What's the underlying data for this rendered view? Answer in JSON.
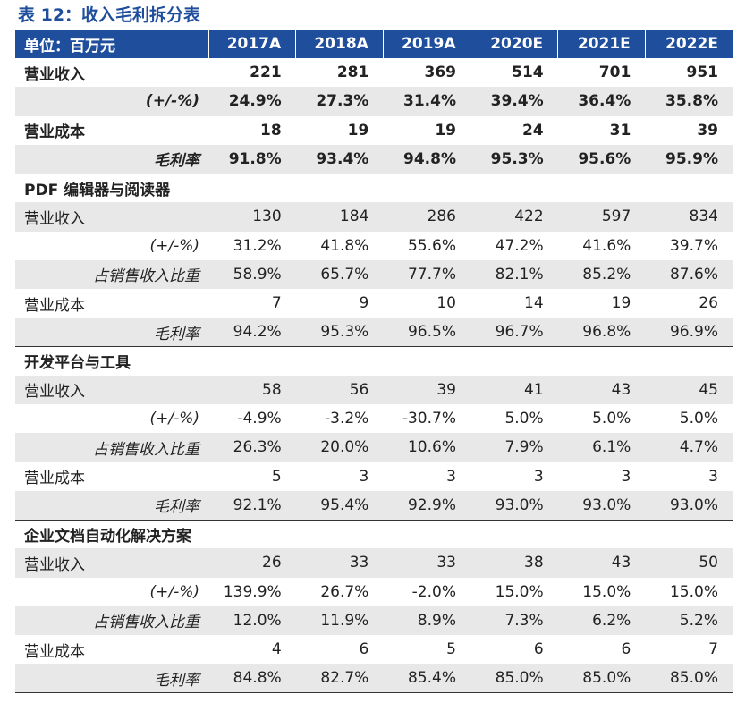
{
  "title": "表 12：收入毛利拆分表",
  "header": [
    "单位：百万元",
    "2017A",
    "2018A",
    "2019A",
    "2020E",
    "2021E",
    "2022E"
  ],
  "rows": [
    {
      "type": "bold",
      "label": "营业收入",
      "values": [
        "221",
        "281",
        "369",
        "514",
        "701",
        "951"
      ]
    },
    {
      "type": "bold-shade-ital",
      "label": "(+/-%)",
      "values": [
        "24.9%",
        "27.3%",
        "31.4%",
        "39.4%",
        "36.4%",
        "35.8%"
      ]
    },
    {
      "type": "bold",
      "label": "营业成本",
      "values": [
        "18",
        "19",
        "19",
        "24",
        "31",
        "39"
      ]
    },
    {
      "type": "bold-shade-ital",
      "label": "毛利率",
      "values": [
        "91.8%",
        "93.4%",
        "94.8%",
        "95.3%",
        "95.6%",
        "95.9%"
      ]
    },
    {
      "type": "section",
      "label": "PDF 编辑器与阅读器"
    },
    {
      "type": "shade",
      "label": "营业收入",
      "values": [
        "130",
        "184",
        "286",
        "422",
        "597",
        "834"
      ]
    },
    {
      "type": "ital",
      "label": "(+/-%)",
      "values": [
        "31.2%",
        "41.8%",
        "55.6%",
        "47.2%",
        "41.6%",
        "39.7%"
      ]
    },
    {
      "type": "shade-ital",
      "label": "占销售收入比重",
      "values": [
        "58.9%",
        "65.7%",
        "77.7%",
        "82.1%",
        "85.2%",
        "87.6%"
      ]
    },
    {
      "type": "plain",
      "label": "营业成本",
      "values": [
        "7",
        "9",
        "10",
        "14",
        "19",
        "26"
      ]
    },
    {
      "type": "shade-ital",
      "label": "毛利率",
      "values": [
        "94.2%",
        "95.3%",
        "96.5%",
        "96.7%",
        "96.8%",
        "96.9%"
      ]
    },
    {
      "type": "section",
      "label": "开发平台与工具"
    },
    {
      "type": "shade",
      "label": "营业收入",
      "values": [
        "58",
        "56",
        "39",
        "41",
        "43",
        "45"
      ]
    },
    {
      "type": "ital",
      "label": "(+/-%)",
      "values": [
        "-4.9%",
        "-3.2%",
        "-30.7%",
        "5.0%",
        "5.0%",
        "5.0%"
      ]
    },
    {
      "type": "shade-ital",
      "label": "占销售收入比重",
      "values": [
        "26.3%",
        "20.0%",
        "10.6%",
        "7.9%",
        "6.1%",
        "4.7%"
      ]
    },
    {
      "type": "plain",
      "label": "营业成本",
      "values": [
        "5",
        "3",
        "3",
        "3",
        "3",
        "3"
      ]
    },
    {
      "type": "shade-ital",
      "label": "毛利率",
      "values": [
        "92.1%",
        "95.4%",
        "92.9%",
        "93.0%",
        "93.0%",
        "93.0%"
      ]
    },
    {
      "type": "section",
      "label": "企业文档自动化解决方案"
    },
    {
      "type": "shade",
      "label": "营业收入",
      "values": [
        "26",
        "33",
        "33",
        "38",
        "43",
        "50"
      ]
    },
    {
      "type": "ital",
      "label": "(+/-%)",
      "values": [
        "139.9%",
        "26.7%",
        "-2.0%",
        "15.0%",
        "15.0%",
        "15.0%"
      ]
    },
    {
      "type": "shade-ital",
      "label": "占销售收入比重",
      "values": [
        "12.0%",
        "11.9%",
        "8.9%",
        "7.3%",
        "6.2%",
        "5.2%"
      ]
    },
    {
      "type": "plain",
      "label": "营业成本",
      "values": [
        "4",
        "6",
        "5",
        "6",
        "6",
        "7"
      ]
    },
    {
      "type": "shade-ital last",
      "label": "毛利率",
      "values": [
        "84.8%",
        "82.7%",
        "85.4%",
        "85.0%",
        "85.0%",
        "85.0%"
      ]
    }
  ],
  "colors": {
    "header_bg": "#1f4e9c",
    "title": "#1f4e9c",
    "shade": "#e8e8e8"
  }
}
